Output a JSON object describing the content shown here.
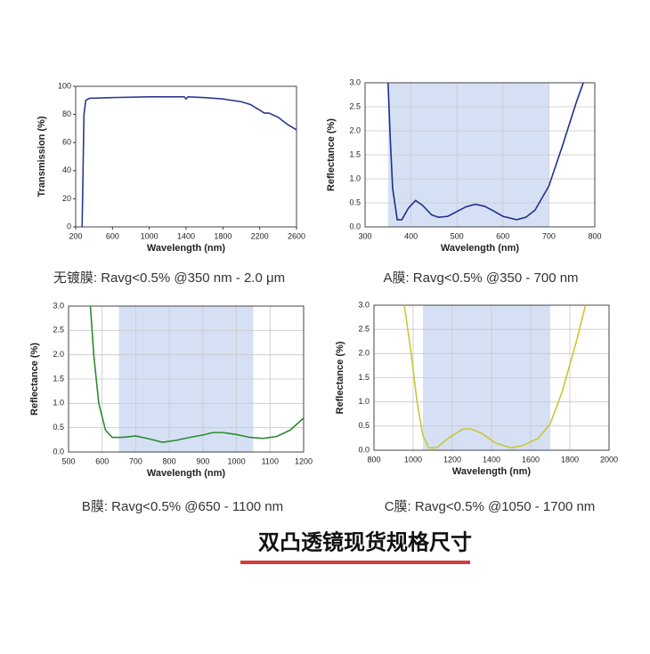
{
  "chart_data": [
    {
      "type": "line",
      "xlabel": "Wavelength (nm)",
      "ylabel": "Transmission (%)",
      "caption": "无镀膜: Ravg<0.5% @350 nm - 2.0 μm",
      "color": "#2b3990",
      "grid": false,
      "xlim": [
        200,
        2600
      ],
      "xticks": [
        200,
        600,
        1000,
        1400,
        1800,
        2200,
        2600
      ],
      "ylim": [
        0,
        100
      ],
      "yticks": [
        0,
        20,
        40,
        60,
        80,
        100
      ],
      "x": [
        270,
        280,
        290,
        310,
        350,
        600,
        1000,
        1380,
        1400,
        1420,
        1600,
        1800,
        2000,
        2100,
        2200,
        2250,
        2300,
        2400,
        2500,
        2600
      ],
      "values": [
        0,
        40,
        80,
        90,
        91.5,
        92,
        92.5,
        92.5,
        91,
        92.5,
        92,
        91,
        89,
        87,
        83,
        81,
        81,
        78,
        73,
        69
      ]
    },
    {
      "type": "line",
      "xlabel": "Wavelength (nm)",
      "ylabel": "Reflectance (%)",
      "caption": "A膜: Ravg<0.5% @350 - 700 nm",
      "color": "#1f2f8f",
      "grid": true,
      "shade": [
        350,
        700
      ],
      "xlim": [
        300,
        800
      ],
      "xticks": [
        300,
        400,
        500,
        600,
        700,
        800
      ],
      "ylim": [
        0,
        3
      ],
      "yticks": [
        {
          "value": 0,
          "label": "0.0"
        },
        0.5,
        {
          "value": 1,
          "label": "1.0"
        },
        1.5,
        {
          "value": 2,
          "label": "2.0"
        },
        2.5,
        {
          "value": 3,
          "label": "3.0"
        }
      ],
      "x": [
        350,
        355,
        360,
        370,
        380,
        395,
        410,
        425,
        445,
        460,
        480,
        500,
        520,
        540,
        560,
        580,
        600,
        630,
        650,
        670,
        700,
        730,
        760,
        775
      ],
      "values": [
        3.0,
        1.8,
        0.8,
        0.15,
        0.15,
        0.4,
        0.55,
        0.45,
        0.25,
        0.2,
        0.22,
        0.32,
        0.42,
        0.47,
        0.43,
        0.33,
        0.22,
        0.15,
        0.2,
        0.35,
        0.85,
        1.7,
        2.6,
        3.0
      ]
    },
    {
      "type": "line",
      "xlabel": "Wavelength (nm)",
      "ylabel": "Reflectance (%)",
      "caption": "B膜: Ravg<0.5% @650 - 1100 nm",
      "color": "#2e8b2e",
      "grid": true,
      "shade": [
        650,
        1050
      ],
      "xlim": [
        500,
        1200
      ],
      "xticks": [
        500,
        600,
        700,
        800,
        900,
        1000,
        1100,
        1200
      ],
      "ylim": [
        0,
        3
      ],
      "yticks": [
        {
          "value": 0,
          "label": "0.0"
        },
        0.5,
        {
          "value": 1,
          "label": "1.0"
        },
        1.5,
        {
          "value": 2,
          "label": "2.0"
        },
        2.5,
        {
          "value": 3,
          "label": "3.0"
        }
      ],
      "x": [
        565,
        575,
        590,
        610,
        630,
        660,
        700,
        740,
        780,
        820,
        860,
        900,
        930,
        960,
        1000,
        1040,
        1080,
        1120,
        1160,
        1200
      ],
      "values": [
        3.0,
        2.0,
        1.0,
        0.45,
        0.3,
        0.3,
        0.33,
        0.27,
        0.2,
        0.24,
        0.3,
        0.35,
        0.4,
        0.4,
        0.36,
        0.3,
        0.28,
        0.32,
        0.45,
        0.7
      ]
    },
    {
      "type": "line",
      "xlabel": "Wavelength (nm)",
      "ylabel": "Reflectance (%)",
      "caption": "C膜: Ravg<0.5% @1050 - 1700 nm",
      "color": "#c8c832",
      "grid": true,
      "shade": [
        1050,
        1700
      ],
      "xlim": [
        800,
        2000
      ],
      "xticks": [
        800,
        1000,
        1200,
        1400,
        1600,
        1800,
        2000
      ],
      "ylim": [
        0,
        3
      ],
      "yticks": [
        {
          "value": 0,
          "label": "0.0"
        },
        0.5,
        {
          "value": 1,
          "label": "1.0"
        },
        1.5,
        {
          "value": 2,
          "label": "2.0"
        },
        2.5,
        {
          "value": 3,
          "label": "3.0"
        }
      ],
      "x": [
        955,
        990,
        1020,
        1050,
        1080,
        1120,
        1180,
        1250,
        1290,
        1350,
        1420,
        1500,
        1560,
        1640,
        1700,
        1760,
        1830,
        1880
      ],
      "values": [
        3.0,
        2.0,
        1.0,
        0.3,
        0.05,
        0.05,
        0.25,
        0.43,
        0.45,
        0.35,
        0.15,
        0.05,
        0.1,
        0.25,
        0.55,
        1.2,
        2.2,
        3.0
      ]
    }
  ],
  "heading": "双凸透镜现货规格尺寸"
}
